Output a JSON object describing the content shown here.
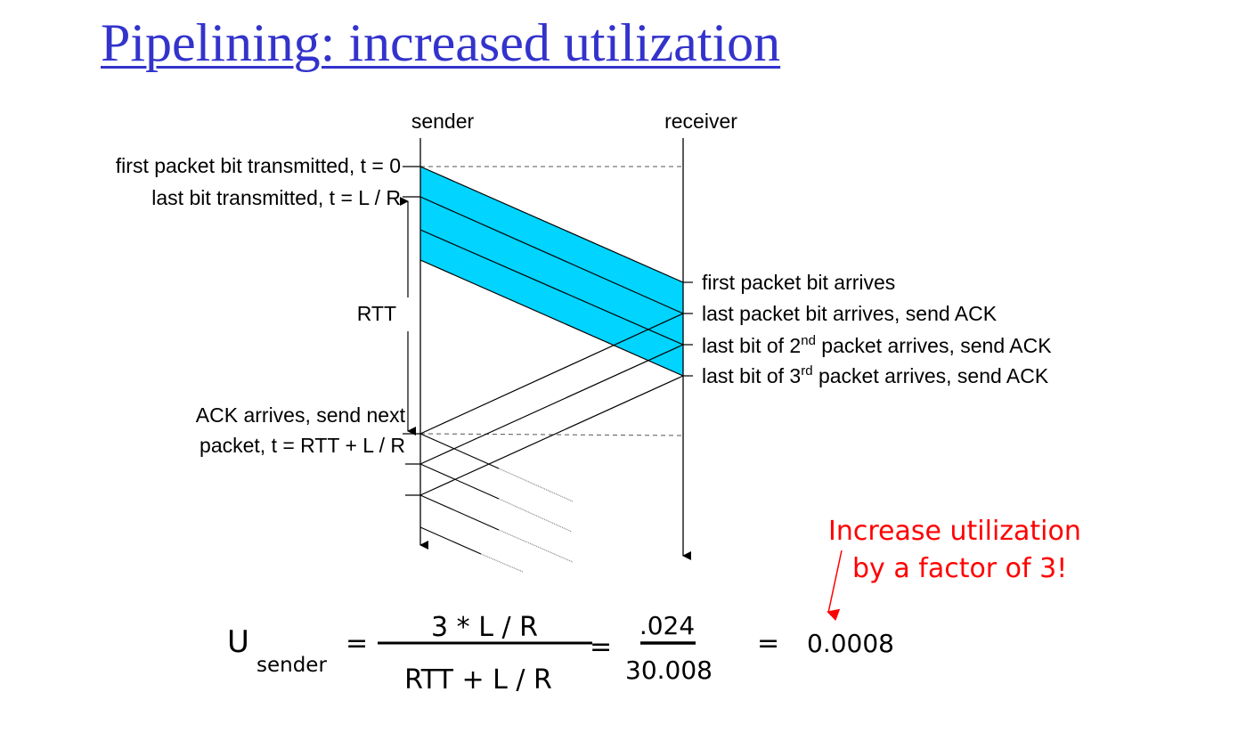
{
  "title": "Pipelining: increased utilization",
  "diagram": {
    "sender_label": "sender",
    "receiver_label": "receiver",
    "left_labels": {
      "first_bit": "first packet bit transmitted, t = 0",
      "last_bit": "last bit transmitted, t = L / R",
      "rtt": "RTT",
      "ack_line1": "ACK arrives, send next",
      "ack_line2": "packet, t = RTT + L / R"
    },
    "right_labels": {
      "first_arrives": "first packet bit arrives",
      "last_arrives": "last packet bit arrives, send ACK",
      "second_pre": "last bit of 2",
      "second_sup": "nd",
      "second_post": " packet arrives, send ACK",
      "third_pre": "last bit of 3",
      "third_sup": "rd",
      "third_post": " packet arrives, send ACK"
    },
    "packet_color": "#00d4ff"
  },
  "annotation": {
    "line1": "Increase utilization",
    "line2": "by a factor of 3!",
    "color": "#ff0000"
  },
  "formula": {
    "u": "U",
    "sub": "sender",
    "eq": "=",
    "num1": "3 * L / R",
    "den1": "RTT + L / R",
    "num2": ".024",
    "den2": "30.008",
    "result": "0.0008"
  }
}
